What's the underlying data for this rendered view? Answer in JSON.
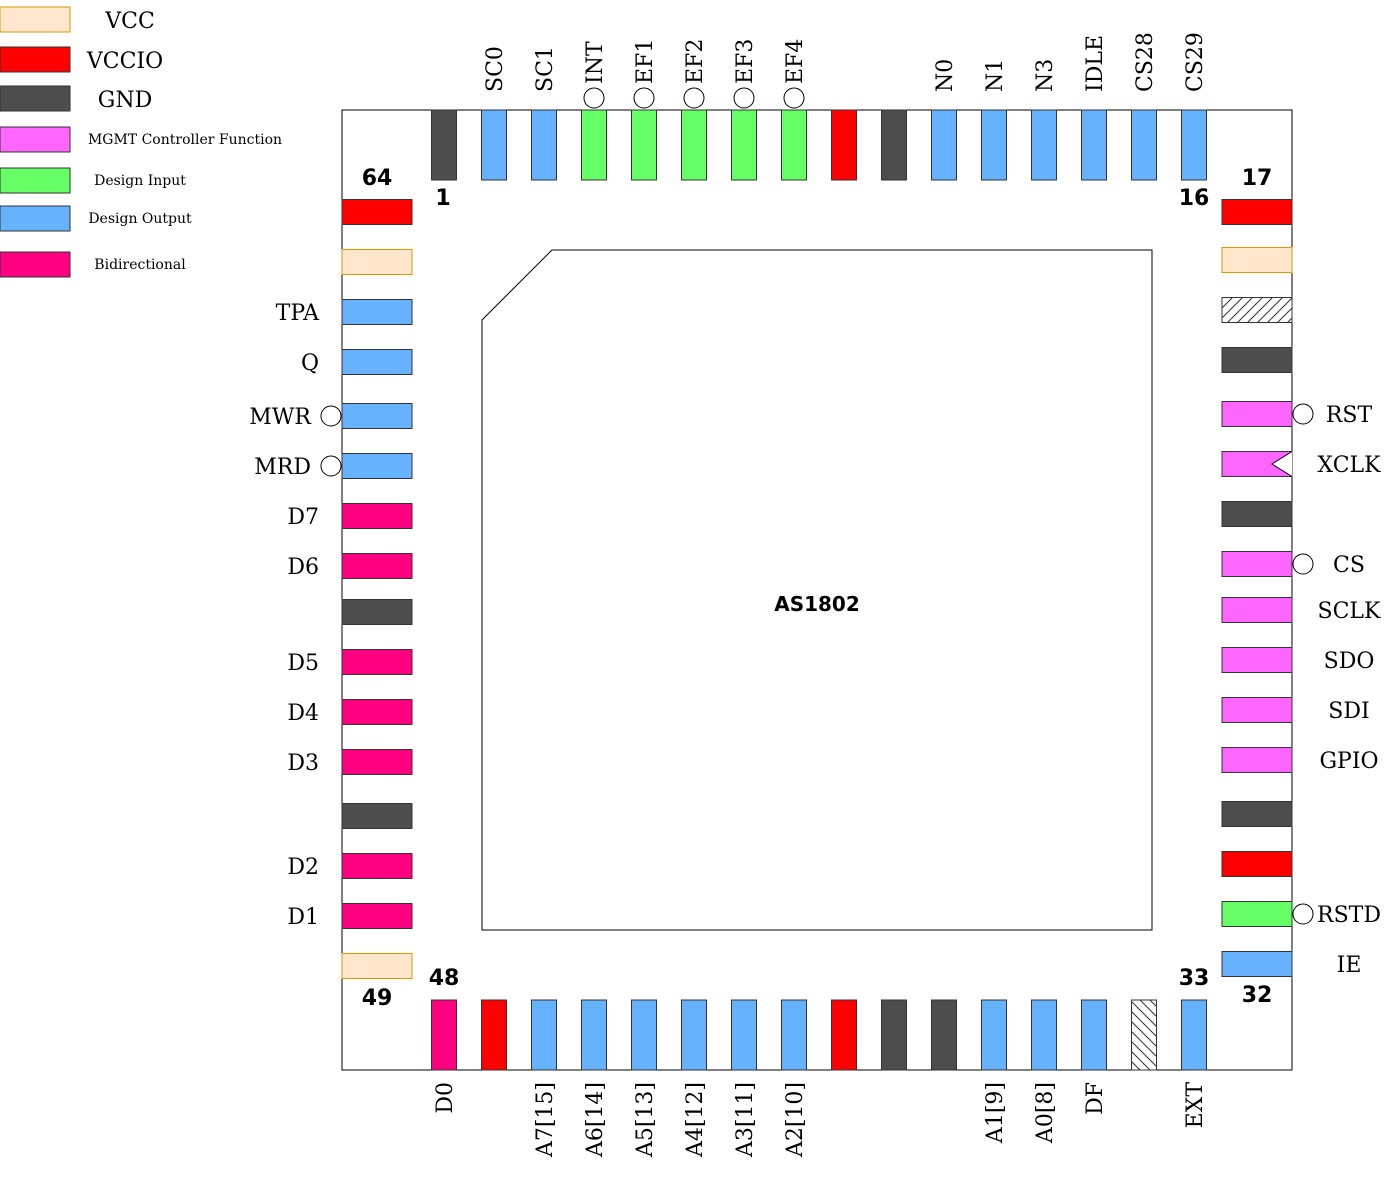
{
  "chip": {
    "name": "AS1802"
  },
  "colors": {
    "vcc": "#FFE6CC",
    "vcc_stroke": "#D79B00",
    "vccio": "#FF0000",
    "gnd": "#4D4D4D",
    "mgmt": "#FF66FF",
    "design_input": "#66FF66",
    "design_output": "#66B2FF",
    "bidirectional": "#FF0080",
    "nc": "#FFFFFF"
  },
  "legend": [
    {
      "key": "vcc",
      "label": "VCC"
    },
    {
      "key": "vccio",
      "label": "VCCIO"
    },
    {
      "key": "gnd",
      "label": "GND"
    },
    {
      "key": "mgmt",
      "label": "MGMT Controller Function"
    },
    {
      "key": "design_input",
      "label": "Design Input"
    },
    {
      "key": "design_output",
      "label": "Design Output"
    },
    {
      "key": "bidirectional",
      "label": "Bidirectional"
    }
  ],
  "pin_numbers": [
    {
      "number": "1"
    },
    {
      "number": "16"
    },
    {
      "number": "17"
    },
    {
      "number": "32"
    },
    {
      "number": "33"
    },
    {
      "number": "48"
    },
    {
      "number": "49"
    },
    {
      "number": "64"
    }
  ],
  "pins": {
    "top": [
      {
        "type": "gnd",
        "label": ""
      },
      {
        "type": "design_output",
        "label": "SC0"
      },
      {
        "type": "design_output",
        "label": "SC1"
      },
      {
        "type": "design_input",
        "label": "INT",
        "inverted": true
      },
      {
        "type": "design_input",
        "label": "EF1",
        "inverted": true
      },
      {
        "type": "design_input",
        "label": "EF2",
        "inverted": true
      },
      {
        "type": "design_input",
        "label": "EF3",
        "inverted": true
      },
      {
        "type": "design_input",
        "label": "EF4",
        "inverted": true
      },
      {
        "type": "vccio",
        "label": ""
      },
      {
        "type": "gnd",
        "label": ""
      },
      {
        "type": "design_output",
        "label": "N0"
      },
      {
        "type": "design_output",
        "label": "N1"
      },
      {
        "type": "design_output",
        "label": "N3"
      },
      {
        "type": "design_output",
        "label": "IDLE"
      },
      {
        "type": "design_output",
        "label": "CS28"
      },
      {
        "type": "design_output",
        "label": "CS29"
      }
    ],
    "right": [
      {
        "type": "vccio",
        "label": ""
      },
      {
        "type": "vcc",
        "label": ""
      },
      {
        "type": "nc",
        "label": ""
      },
      {
        "type": "gnd",
        "label": ""
      },
      {
        "type": "mgmt",
        "label": "RST",
        "inverted": true
      },
      {
        "type": "mgmt",
        "label": "XCLK",
        "clock": true
      },
      {
        "type": "gnd",
        "label": ""
      },
      {
        "type": "mgmt",
        "label": "CS",
        "inverted": true
      },
      {
        "type": "mgmt",
        "label": "SCLK"
      },
      {
        "type": "mgmt",
        "label": "SDO"
      },
      {
        "type": "mgmt",
        "label": "SDI"
      },
      {
        "type": "mgmt",
        "label": "GPIO"
      },
      {
        "type": "gnd",
        "label": ""
      },
      {
        "type": "vccio",
        "label": ""
      },
      {
        "type": "design_input",
        "label": "RSTD",
        "inverted": true
      },
      {
        "type": "design_output",
        "label": "IE"
      }
    ],
    "bottom": [
      {
        "type": "bidirectional",
        "label": "D0"
      },
      {
        "type": "vccio",
        "label": ""
      },
      {
        "type": "design_output",
        "label": "A7[15]"
      },
      {
        "type": "design_output",
        "label": "A6[14]"
      },
      {
        "type": "design_output",
        "label": "A5[13]"
      },
      {
        "type": "design_output",
        "label": "A4[12]"
      },
      {
        "type": "design_output",
        "label": "A3[11]"
      },
      {
        "type": "design_output",
        "label": "A2[10]"
      },
      {
        "type": "vccio",
        "label": ""
      },
      {
        "type": "gnd",
        "label": ""
      },
      {
        "type": "gnd",
        "label": ""
      },
      {
        "type": "design_output",
        "label": "A1[9]"
      },
      {
        "type": "design_output",
        "label": "A0[8]"
      },
      {
        "type": "design_output",
        "label": "DF"
      },
      {
        "type": "nc",
        "label": ""
      },
      {
        "type": "design_output",
        "label": "EXT"
      }
    ],
    "left": [
      {
        "type": "vccio",
        "label": ""
      },
      {
        "type": "vcc",
        "label": ""
      },
      {
        "type": "design_output",
        "label": "TPA"
      },
      {
        "type": "design_output",
        "label": "Q"
      },
      {
        "type": "design_output",
        "label": "MWR",
        "inverted": true
      },
      {
        "type": "design_output",
        "label": "MRD",
        "inverted": true
      },
      {
        "type": "bidirectional",
        "label": "D7"
      },
      {
        "type": "bidirectional",
        "label": "D6"
      },
      {
        "type": "gnd",
        "label": ""
      },
      {
        "type": "bidirectional",
        "label": "D5"
      },
      {
        "type": "bidirectional",
        "label": "D4"
      },
      {
        "type": "bidirectional",
        "label": "D3"
      },
      {
        "type": "gnd",
        "label": ""
      },
      {
        "type": "bidirectional",
        "label": "D2"
      },
      {
        "type": "bidirectional",
        "label": "D1"
      },
      {
        "type": "vcc",
        "label": ""
      }
    ]
  }
}
